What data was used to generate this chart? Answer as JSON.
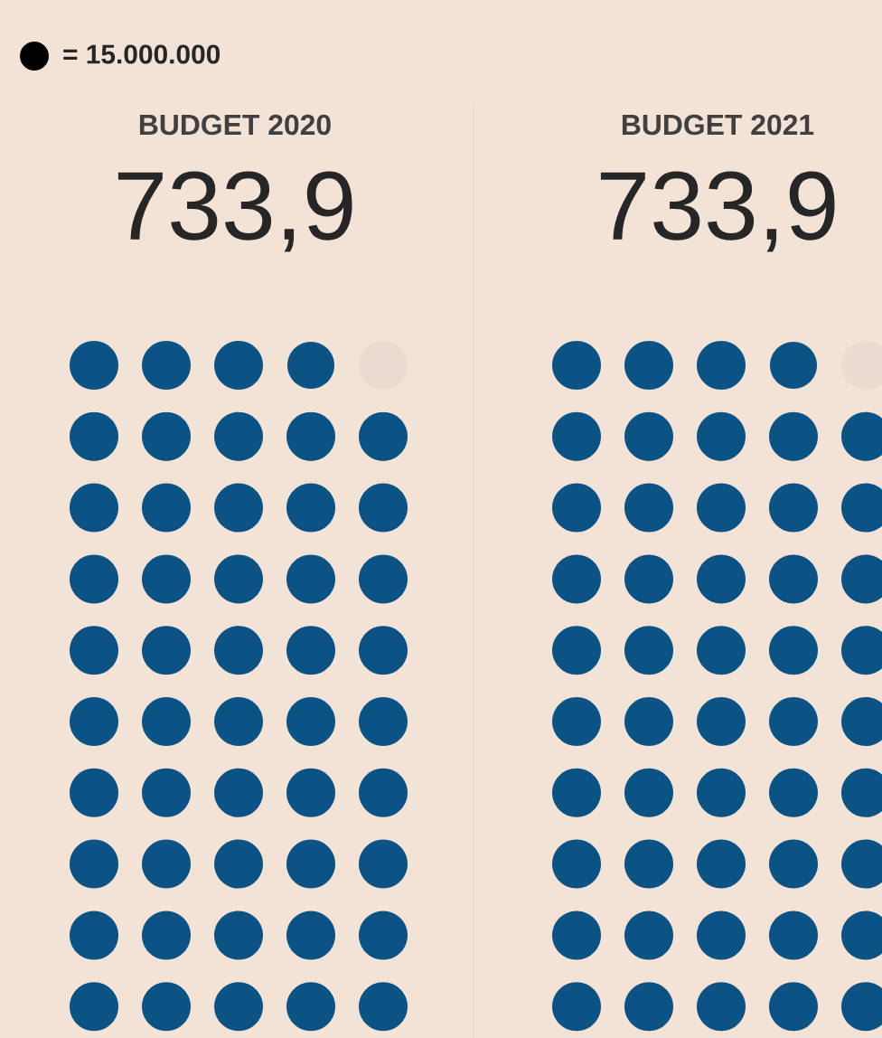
{
  "chart_data": {
    "type": "other",
    "categories": [
      "BUDGET 2020",
      "BUDGET 2021"
    ],
    "values": [
      733.9,
      733.9
    ],
    "value_labels": [
      "733,9",
      "733,9"
    ],
    "color": "#0b5384",
    "annotations": [
      "= 15.000.000"
    ]
  }
}
